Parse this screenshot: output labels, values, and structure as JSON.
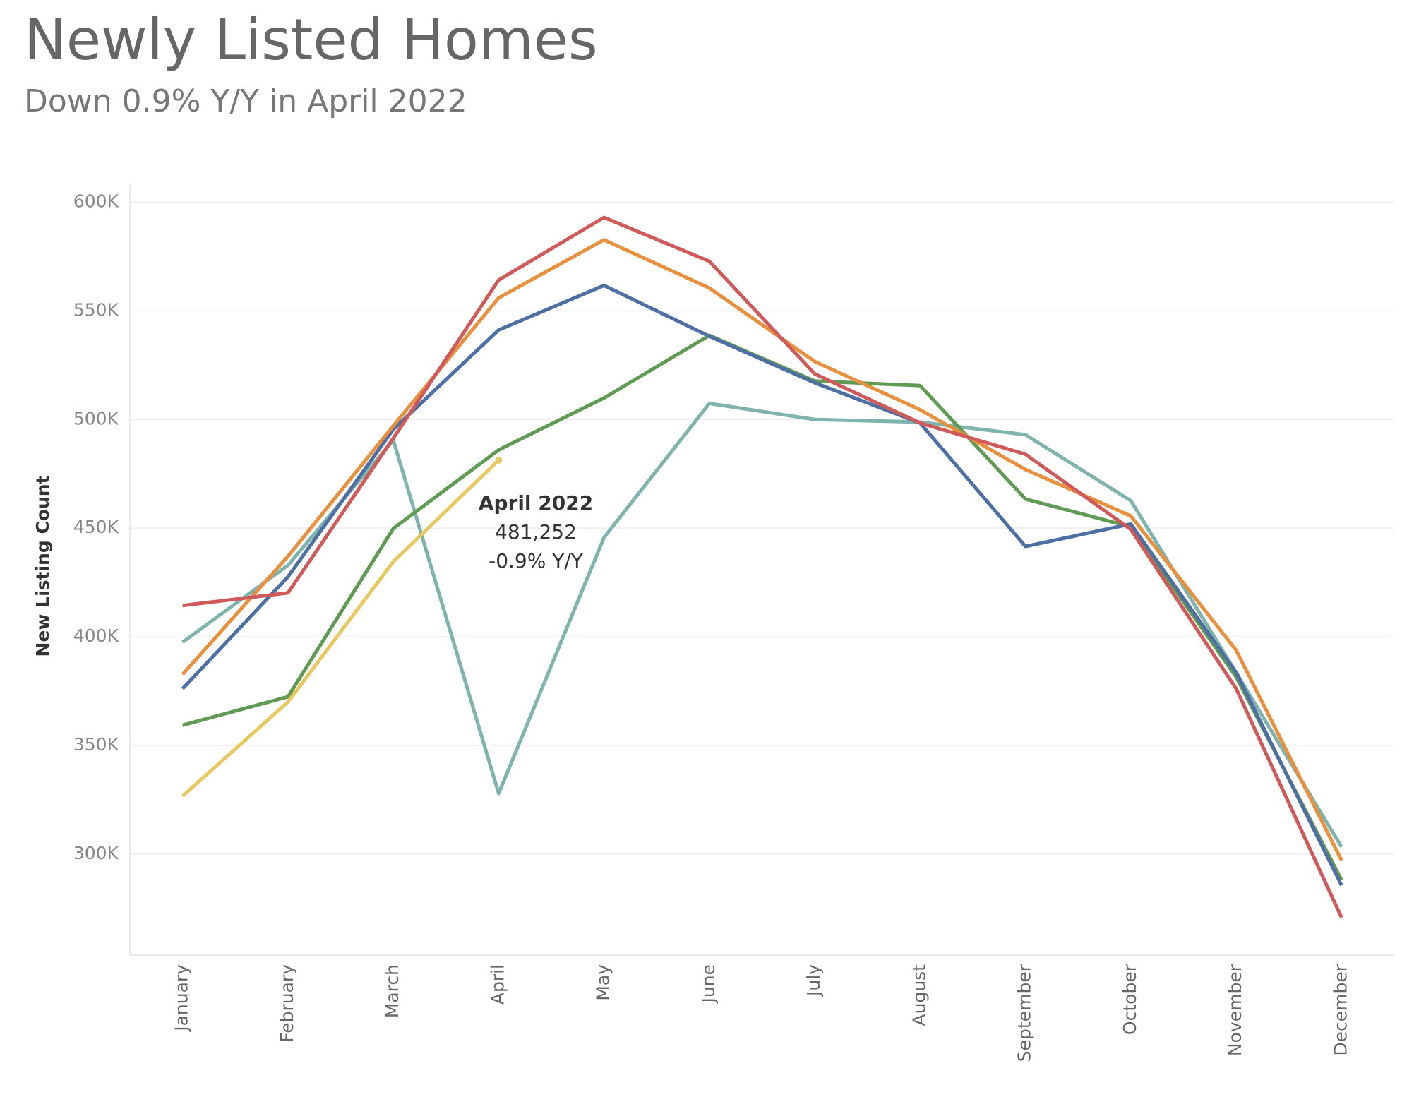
{
  "chart_data": {
    "type": "line",
    "title": "Newly Listed Homes",
    "subtitle": "Down 0.9% Y/Y in April 2022",
    "y_label": "New Listing Count",
    "categories": [
      "January",
      "February",
      "March",
      "April",
      "May",
      "June",
      "July",
      "August",
      "September",
      "October",
      "November",
      "December"
    ],
    "series": [
      {
        "color": "#7fb3ae",
        "values": [
          397500,
          432900,
          490500,
          327900,
          445700,
          507400,
          500000,
          498800,
          493000,
          462600,
          383500,
          303300
        ]
      },
      {
        "color": "#5f9b52",
        "values": [
          359300,
          372400,
          449800,
          486000,
          509900,
          538700,
          517700,
          515600,
          463400,
          450600,
          381500,
          288100
        ]
      },
      {
        "color": "#4e6fa3",
        "values": [
          376100,
          427600,
          495500,
          541200,
          561700,
          538300,
          516900,
          498400,
          441600,
          451900,
          383500,
          285600
        ]
      },
      {
        "color": "#e8903d",
        "values": [
          382700,
          437000,
          497100,
          556000,
          582700,
          560500,
          526700,
          504500,
          477000,
          455600,
          393800,
          297100
        ]
      },
      {
        "color": "#d05a5a",
        "values": [
          414400,
          420200,
          491400,
          564200,
          593000,
          572800,
          521000,
          498400,
          484000,
          449400,
          376100,
          270800
        ]
      },
      {
        "color": "#e8c860",
        "values": [
          326700,
          370000,
          434600,
          481252,
          null,
          null,
          null,
          null,
          null,
          null,
          null,
          null
        ]
      }
    ],
    "annotation": {
      "title": "April 2022",
      "value": "481,252",
      "change": "-0.9% Y/Y"
    },
    "ylim": [
      253500,
      608600
    ],
    "yticks": [
      {
        "value": 300000,
        "label": "300K"
      },
      {
        "value": 350000,
        "label": "350K"
      },
      {
        "value": 400000,
        "label": "400K"
      },
      {
        "value": 450000,
        "label": "450K"
      },
      {
        "value": 500000,
        "label": "500K"
      },
      {
        "value": 550000,
        "label": "550K"
      },
      {
        "value": 600000,
        "label": "600K"
      }
    ],
    "grid": true
  }
}
